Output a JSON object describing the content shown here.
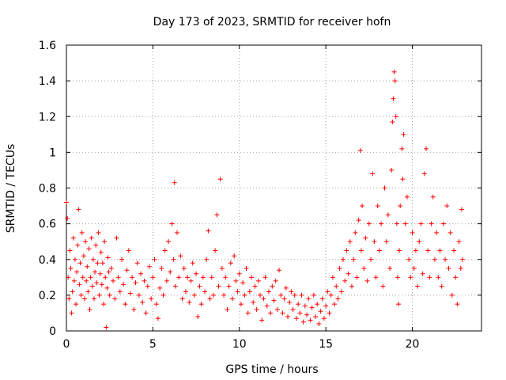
{
  "chart_data": {
    "type": "scatter",
    "title": "Day 173 of 2023, SRMTID for receiver hofn",
    "xlabel": "GPS time / hours",
    "ylabel": "SRMTID / TECUs",
    "xlim": [
      0,
      24
    ],
    "ylim": [
      0,
      1.6
    ],
    "xticks": [
      0,
      5,
      10,
      15,
      20
    ],
    "yticks": [
      0,
      0.2,
      0.4,
      0.6,
      0.8,
      1,
      1.2,
      1.4,
      1.6
    ],
    "xtick_labels": [
      "0",
      "5",
      "10",
      "15",
      "20"
    ],
    "ytick_labels": [
      "0",
      "0.2",
      "0.4",
      "0.6",
      "0.8",
      "1",
      "1.2",
      "1.4",
      "1.6"
    ],
    "grid": true,
    "marker": "+",
    "color": "#ff0000",
    "series": [
      {
        "name": "SRMTID",
        "points": [
          [
            0.0,
            0.72
          ],
          [
            0.05,
            0.63
          ],
          [
            0.1,
            0.3
          ],
          [
            0.15,
            0.18
          ],
          [
            0.2,
            0.45
          ],
          [
            0.25,
            0.35
          ],
          [
            0.3,
            0.1
          ],
          [
            0.35,
            0.22
          ],
          [
            0.4,
            0.52
          ],
          [
            0.45,
            0.28
          ],
          [
            0.5,
            0.4
          ],
          [
            0.55,
            0.15
          ],
          [
            0.6,
            0.33
          ],
          [
            0.65,
            0.48
          ],
          [
            0.7,
            0.68
          ],
          [
            0.75,
            0.26
          ],
          [
            0.8,
            0.38
          ],
          [
            0.85,
            0.2
          ],
          [
            0.9,
            0.55
          ],
          [
            0.95,
            0.3
          ],
          [
            1.0,
            0.42
          ],
          [
            1.05,
            0.18
          ],
          [
            1.1,
            0.5
          ],
          [
            1.15,
            0.28
          ],
          [
            1.2,
            0.36
          ],
          [
            1.25,
            0.22
          ],
          [
            1.3,
            0.46
          ],
          [
            1.35,
            0.12
          ],
          [
            1.4,
            0.3
          ],
          [
            1.45,
            0.52
          ],
          [
            1.5,
            0.25
          ],
          [
            1.55,
            0.4
          ],
          [
            1.6,
            0.18
          ],
          [
            1.65,
            0.33
          ],
          [
            1.7,
            0.48
          ],
          [
            1.75,
            0.27
          ],
          [
            1.8,
            0.38
          ],
          [
            1.85,
            0.55
          ],
          [
            1.9,
            0.2
          ],
          [
            1.95,
            0.32
          ],
          [
            2.0,
            0.44
          ],
          [
            2.05,
            0.26
          ],
          [
            2.1,
            0.38
          ],
          [
            2.15,
            0.15
          ],
          [
            2.2,
            0.5
          ],
          [
            2.25,
            0.3
          ],
          [
            2.3,
            0.02
          ],
          [
            2.35,
            0.24
          ],
          [
            2.4,
            0.41
          ],
          [
            2.45,
            0.33
          ],
          [
            2.5,
            0.2
          ],
          [
            2.6,
            0.35
          ],
          [
            2.7,
            0.28
          ],
          [
            2.8,
            0.18
          ],
          [
            2.9,
            0.52
          ],
          [
            3.0,
            0.3
          ],
          [
            3.1,
            0.22
          ],
          [
            3.2,
            0.4
          ],
          [
            3.3,
            0.26
          ],
          [
            3.4,
            0.15
          ],
          [
            3.5,
            0.34
          ],
          [
            3.6,
            0.45
          ],
          [
            3.7,
            0.21
          ],
          [
            3.8,
            0.3
          ],
          [
            3.9,
            0.12
          ],
          [
            4.0,
            0.27
          ],
          [
            4.1,
            0.38
          ],
          [
            4.2,
            0.2
          ],
          [
            4.3,
            0.32
          ],
          [
            4.4,
            0.16
          ],
          [
            4.5,
            0.28
          ],
          [
            4.6,
            0.1
          ],
          [
            4.7,
            0.25
          ],
          [
            4.8,
            0.36
          ],
          [
            4.9,
            0.18
          ],
          [
            5.0,
            0.3
          ],
          [
            5.1,
            0.4
          ],
          [
            5.2,
            0.15
          ],
          [
            5.3,
            0.07
          ],
          [
            5.4,
            0.24
          ],
          [
            5.5,
            0.35
          ],
          [
            5.6,
            0.2
          ],
          [
            5.7,
            0.45
          ],
          [
            5.8,
            0.28
          ],
          [
            5.9,
            0.5
          ],
          [
            6.0,
            0.33
          ],
          [
            6.1,
            0.6
          ],
          [
            6.2,
            0.4
          ],
          [
            6.25,
            0.83
          ],
          [
            6.3,
            0.25
          ],
          [
            6.4,
            0.55
          ],
          [
            6.5,
            0.3
          ],
          [
            6.6,
            0.42
          ],
          [
            6.7,
            0.18
          ],
          [
            6.8,
            0.35
          ],
          [
            6.9,
            0.22
          ],
          [
            7.0,
            0.3
          ],
          [
            7.1,
            0.16
          ],
          [
            7.2,
            0.28
          ],
          [
            7.3,
            0.38
          ],
          [
            7.4,
            0.2
          ],
          [
            7.5,
            0.32
          ],
          [
            7.6,
            0.08
          ],
          [
            7.7,
            0.25
          ],
          [
            7.8,
            0.15
          ],
          [
            7.9,
            0.3
          ],
          [
            8.0,
            0.22
          ],
          [
            8.1,
            0.4
          ],
          [
            8.2,
            0.56
          ],
          [
            8.3,
            0.18
          ],
          [
            8.4,
            0.3
          ],
          [
            8.5,
            0.2
          ],
          [
            8.6,
            0.45
          ],
          [
            8.7,
            0.65
          ],
          [
            8.8,
            0.25
          ],
          [
            8.9,
            0.85
          ],
          [
            9.0,
            0.35
          ],
          [
            9.1,
            0.2
          ],
          [
            9.2,
            0.3
          ],
          [
            9.3,
            0.12
          ],
          [
            9.4,
            0.25
          ],
          [
            9.5,
            0.38
          ],
          [
            9.6,
            0.18
          ],
          [
            9.7,
            0.42
          ],
          [
            9.8,
            0.28
          ],
          [
            9.9,
            0.22
          ],
          [
            10.0,
            0.32
          ],
          [
            10.1,
            0.15
          ],
          [
            10.2,
            0.27
          ],
          [
            10.3,
            0.2
          ],
          [
            10.4,
            0.35
          ],
          [
            10.5,
            0.1
          ],
          [
            10.6,
            0.22
          ],
          [
            10.7,
            0.3
          ],
          [
            10.8,
            0.16
          ],
          [
            10.9,
            0.25
          ],
          [
            11.0,
            0.12
          ],
          [
            11.1,
            0.28
          ],
          [
            11.2,
            0.2
          ],
          [
            11.3,
            0.06
          ],
          [
            11.4,
            0.18
          ],
          [
            11.5,
            0.3
          ],
          [
            11.6,
            0.14
          ],
          [
            11.7,
            0.22
          ],
          [
            11.8,
            0.1
          ],
          [
            11.9,
            0.25
          ],
          [
            12.0,
            0.17
          ],
          [
            12.1,
            0.28
          ],
          [
            12.2,
            0.12
          ],
          [
            12.3,
            0.34
          ],
          [
            12.4,
            0.2
          ],
          [
            12.5,
            0.1
          ],
          [
            12.6,
            0.18
          ],
          [
            12.7,
            0.24
          ],
          [
            12.8,
            0.08
          ],
          [
            12.9,
            0.16
          ],
          [
            13.0,
            0.22
          ],
          [
            13.1,
            0.12
          ],
          [
            13.2,
            0.2
          ],
          [
            13.3,
            0.07
          ],
          [
            13.4,
            0.15
          ],
          [
            13.5,
            0.1
          ],
          [
            13.6,
            0.2
          ],
          [
            13.7,
            0.05
          ],
          [
            13.8,
            0.14
          ],
          [
            13.9,
            0.09
          ],
          [
            14.0,
            0.18
          ],
          [
            14.1,
            0.06
          ],
          [
            14.2,
            0.13
          ],
          [
            14.3,
            0.2
          ],
          [
            14.4,
            0.08
          ],
          [
            14.5,
            0.15
          ],
          [
            14.6,
            0.04
          ],
          [
            14.7,
            0.11
          ],
          [
            14.8,
            0.18
          ],
          [
            14.9,
            0.07
          ],
          [
            15.0,
            0.14
          ],
          [
            15.1,
            0.22
          ],
          [
            15.2,
            0.1
          ],
          [
            15.3,
            0.2
          ],
          [
            15.4,
            0.3
          ],
          [
            15.5,
            0.15
          ],
          [
            15.6,
            0.25
          ],
          [
            15.7,
            0.18
          ],
          [
            15.8,
            0.35
          ],
          [
            15.9,
            0.22
          ],
          [
            16.0,
            0.4
          ],
          [
            16.1,
            0.28
          ],
          [
            16.2,
            0.45
          ],
          [
            16.3,
            0.32
          ],
          [
            16.4,
            0.5
          ],
          [
            16.5,
            0.25
          ],
          [
            16.6,
            0.4
          ],
          [
            16.7,
            0.55
          ],
          [
            16.8,
            0.3
          ],
          [
            16.9,
            0.62
          ],
          [
            17.0,
            1.01
          ],
          [
            17.05,
            0.45
          ],
          [
            17.1,
            0.7
          ],
          [
            17.2,
            0.35
          ],
          [
            17.3,
            0.52
          ],
          [
            17.4,
            0.28
          ],
          [
            17.5,
            0.6
          ],
          [
            17.6,
            0.4
          ],
          [
            17.7,
            0.88
          ],
          [
            17.8,
            0.5
          ],
          [
            17.9,
            0.3
          ],
          [
            18.0,
            0.7
          ],
          [
            18.1,
            0.45
          ],
          [
            18.2,
            0.6
          ],
          [
            18.3,
            0.25
          ],
          [
            18.4,
            0.8
          ],
          [
            18.5,
            0.5
          ],
          [
            18.6,
            0.65
          ],
          [
            18.7,
            0.35
          ],
          [
            18.8,
            0.9
          ],
          [
            18.85,
            1.17
          ],
          [
            18.9,
            1.3
          ],
          [
            18.95,
            1.45
          ],
          [
            19.0,
            1.4
          ],
          [
            19.05,
            1.2
          ],
          [
            19.1,
            0.6
          ],
          [
            19.15,
            0.3
          ],
          [
            19.2,
            0.15
          ],
          [
            19.25,
            0.45
          ],
          [
            19.3,
            0.7
          ],
          [
            19.4,
            1.02
          ],
          [
            19.45,
            0.85
          ],
          [
            19.5,
            1.1
          ],
          [
            19.6,
            0.6
          ],
          [
            19.7,
            0.75
          ],
          [
            19.8,
            0.4
          ],
          [
            19.9,
            0.3
          ],
          [
            20.0,
            0.55
          ],
          [
            20.1,
            0.35
          ],
          [
            20.2,
            0.45
          ],
          [
            20.3,
            0.25
          ],
          [
            20.4,
            0.5
          ],
          [
            20.5,
            0.6
          ],
          [
            20.6,
            0.32
          ],
          [
            20.7,
            0.88
          ],
          [
            20.8,
            1.02
          ],
          [
            20.9,
            0.45
          ],
          [
            21.0,
            0.3
          ],
          [
            21.1,
            0.6
          ],
          [
            21.2,
            0.75
          ],
          [
            21.3,
            0.4
          ],
          [
            21.4,
            0.55
          ],
          [
            21.5,
            0.3
          ],
          [
            21.6,
            0.45
          ],
          [
            21.7,
            0.25
          ],
          [
            21.8,
            0.6
          ],
          [
            21.9,
            0.4
          ],
          [
            22.0,
            0.7
          ],
          [
            22.1,
            0.35
          ],
          [
            22.2,
            0.55
          ],
          [
            22.3,
            0.2
          ],
          [
            22.4,
            0.45
          ],
          [
            22.5,
            0.3
          ],
          [
            22.6,
            0.15
          ],
          [
            22.7,
            0.5
          ],
          [
            22.8,
            0.35
          ],
          [
            22.85,
            0.68
          ],
          [
            22.9,
            0.4
          ]
        ]
      }
    ]
  }
}
